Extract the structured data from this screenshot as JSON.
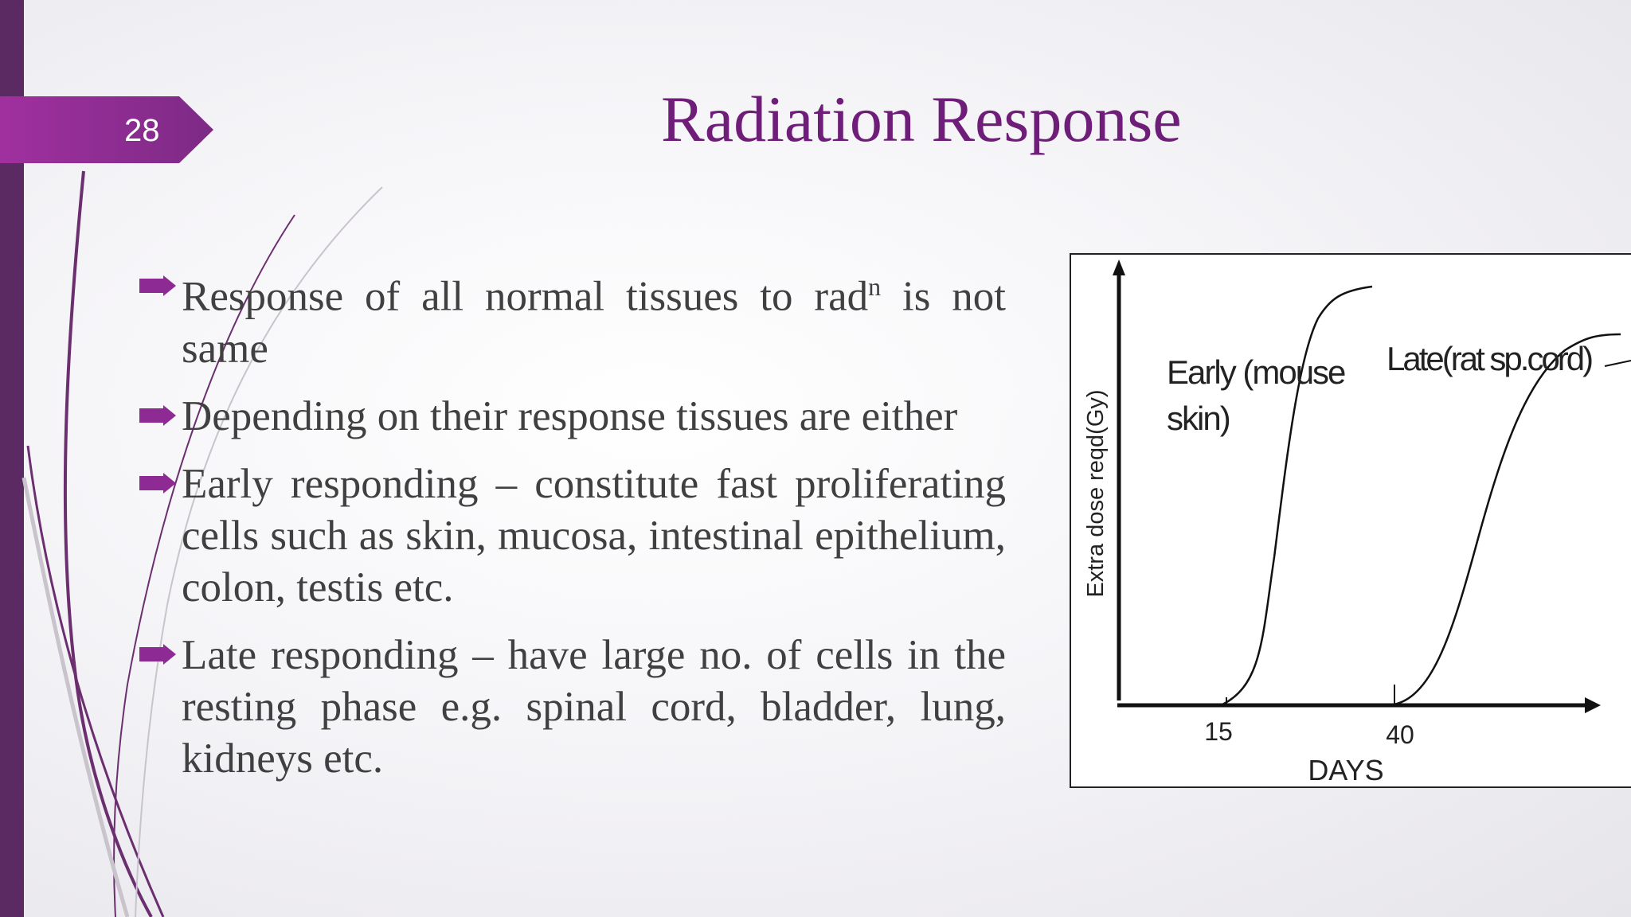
{
  "slide": {
    "number": "28",
    "title": "Radiation Response",
    "colors": {
      "accent": "#6e1e78",
      "sidebar": "#5c2a62",
      "badge": "#8e2a93"
    }
  },
  "bullets": [
    {
      "pre": "Response of  all normal tissues to rad",
      "sup": "n",
      "post": " is not same"
    },
    {
      "text": "Depending on their response tissues are either"
    },
    {
      "text": "Early responding – constitute fast proliferating cells such as skin, mucosa, intestinal epithelium, colon, testis etc."
    },
    {
      "text": "Late responding –  have large no. of cells in the resting phase e.g. spinal cord, bladder, lung, kidneys etc."
    }
  ],
  "bullet_icon": "arrow-bullet-icon",
  "figure": {
    "ylabel": "Extra dose reqd(Gy)",
    "xlabel": "DAYS",
    "ticks": [
      "15",
      "40"
    ],
    "curve_early_label_line1": "Early (mouse",
    "curve_early_label_line2": "skin)",
    "curve_late_label": "Late(rat sp.cord)"
  }
}
